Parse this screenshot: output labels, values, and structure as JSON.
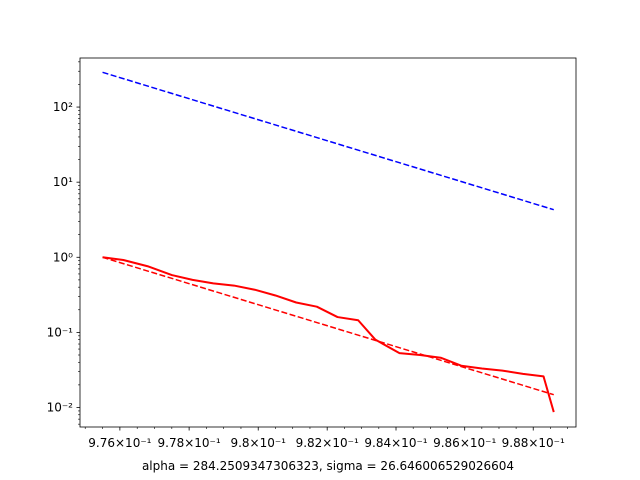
{
  "chart_data": {
    "type": "line",
    "title": "",
    "xlabel": "alpha = 284.2509347306323, sigma = 26.646006529026604",
    "ylabel": "",
    "xscale": "log",
    "yscale": "log",
    "xlim": [
      0.97485,
      0.98925
    ],
    "ylim": [
      0.0055,
      450
    ],
    "x_ticks": [
      {
        "value": 0.976,
        "label": "9.76×10⁻¹"
      },
      {
        "value": 0.978,
        "label": "9.78×10⁻¹"
      },
      {
        "value": 0.98,
        "label": "9.8×10⁻¹"
      },
      {
        "value": 0.982,
        "label": "9.82×10⁻¹"
      },
      {
        "value": 0.984,
        "label": "9.84×10⁻¹"
      },
      {
        "value": 0.986,
        "label": "9.86×10⁻¹"
      },
      {
        "value": 0.988,
        "label": "9.88×10⁻¹"
      }
    ],
    "y_ticks": [
      {
        "value": 0.01,
        "label": "10⁻²"
      },
      {
        "value": 0.1,
        "label": "10⁻¹"
      },
      {
        "value": 1,
        "label": "10⁰"
      },
      {
        "value": 10,
        "label": "10¹"
      },
      {
        "value": 100,
        "label": "10²"
      }
    ],
    "grid": false,
    "legend": "none",
    "series": [
      {
        "style": "dashed",
        "color": "#0000ff",
        "x": [
          0.9755,
          0.9886
        ],
        "y": [
          290,
          4.3
        ]
      },
      {
        "style": "dashed",
        "color": "#ff0000",
        "x": [
          0.9755,
          0.9886
        ],
        "y": [
          1.0,
          0.0148
        ]
      },
      {
        "style": "solid",
        "color": "#ff0000",
        "x": [
          0.9755,
          0.9761,
          0.9768,
          0.9775,
          0.9781,
          0.9787,
          0.9793,
          0.9799,
          0.9805,
          0.9811,
          0.9817,
          0.9823,
          0.9829,
          0.9834,
          0.9841,
          0.9847,
          0.9853,
          0.9859,
          0.9865,
          0.9871,
          0.9877,
          0.9883,
          0.9886
        ],
        "y": [
          1.0,
          0.92,
          0.76,
          0.58,
          0.5,
          0.45,
          0.42,
          0.37,
          0.31,
          0.25,
          0.22,
          0.16,
          0.145,
          0.08,
          0.053,
          0.05,
          0.046,
          0.036,
          0.033,
          0.031,
          0.028,
          0.026,
          0.0087
        ]
      }
    ]
  }
}
